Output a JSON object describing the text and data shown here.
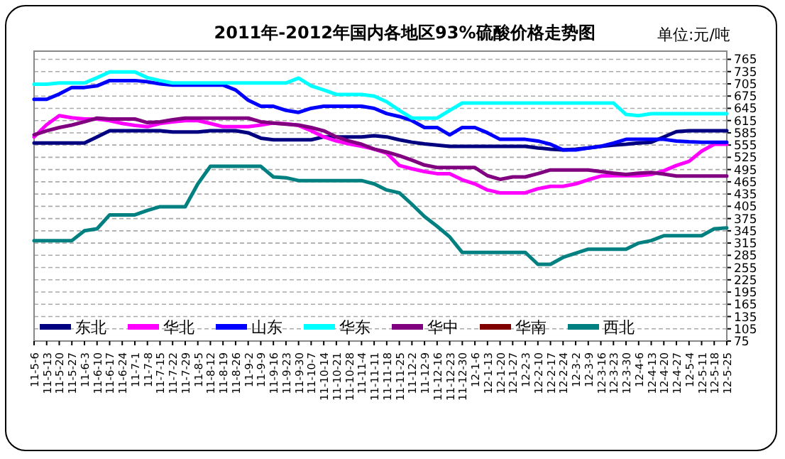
{
  "chart_data": {
    "type": "line",
    "title": "2011年-2012年国内各地区93%硫酸价格走势图",
    "annotations": [
      "单位:元/吨"
    ],
    "categories": [
      "11-5-6",
      "11-5-13",
      "11-5-20",
      "11-5-27",
      "11-6-3",
      "11-6-10",
      "11-6-17",
      "11-6-24",
      "11-7-1",
      "11-7-8",
      "11-7-15",
      "11-7-22",
      "11-7-29",
      "11-8-5",
      "11-8-12",
      "11-8-19",
      "11-8-26",
      "11-9-2",
      "11-9-9",
      "11-9-16",
      "11-9-23",
      "11-9-30",
      "11-10-7",
      "11-10-14",
      "11-10-21",
      "11-10-28",
      "11-11-4",
      "11-11-11",
      "11-11-18",
      "11-11-25",
      "11-12-2",
      "11-12-9",
      "11-12-16",
      "11-12-23",
      "11-12-30",
      "12-1-6",
      "12-1-13",
      "12-1-20",
      "12-1-27",
      "12-2-3",
      "12-2-10",
      "12-2-17",
      "12-2-24",
      "12-3-2",
      "12-3-9",
      "12-3-16",
      "12-3-23",
      "12-3-30",
      "12-4-6",
      "12-4-13",
      "12-4-20",
      "12-4-27",
      "12-5-4",
      "12-5-11",
      "12-5-18",
      "12-5-25"
    ],
    "series": [
      {
        "name": "东北",
        "color": "#000080",
        "values": [
          560,
          560,
          560,
          560,
          560,
          575,
          590,
          590,
          590,
          590,
          590,
          587,
          587,
          587,
          590,
          590,
          590,
          585,
          572,
          568,
          568,
          568,
          568,
          575,
          575,
          575,
          575,
          578,
          575,
          568,
          562,
          558,
          555,
          552,
          552,
          552,
          552,
          552,
          552,
          552,
          548,
          545,
          543,
          545,
          548,
          552,
          555,
          557,
          560,
          562,
          575,
          588,
          590,
          590,
          590,
          590
        ]
      },
      {
        "name": "华北",
        "color": "#ff00ff",
        "values": [
          575,
          605,
          627,
          622,
          619,
          619,
          615,
          608,
          603,
          600,
          608,
          612,
          615,
          615,
          608,
          600,
          600,
          600,
          604,
          609,
          607,
          603,
          590,
          575,
          565,
          558,
          552,
          545,
          535,
          505,
          497,
          490,
          485,
          485,
          470,
          460,
          445,
          438,
          438,
          438,
          448,
          454,
          454,
          460,
          470,
          479,
          480,
          480,
          480,
          483,
          492,
          505,
          515,
          540,
          557,
          557
        ]
      },
      {
        "name": "山东",
        "color": "#0000ff",
        "values": [
          667,
          667,
          680,
          696,
          696,
          700,
          713,
          713,
          713,
          710,
          705,
          702,
          702,
          702,
          702,
          702,
          690,
          665,
          650,
          650,
          640,
          635,
          645,
          650,
          650,
          650,
          650,
          645,
          632,
          625,
          615,
          598,
          598,
          580,
          598,
          598,
          585,
          569,
          569,
          569,
          565,
          557,
          543,
          543,
          548,
          552,
          560,
          569,
          569,
          569,
          569,
          565,
          563,
          562,
          562,
          562
        ]
      },
      {
        "name": "华东",
        "color": "#00ffff",
        "values": [
          704,
          704,
          707,
          707,
          707,
          720,
          734,
          734,
          734,
          720,
          713,
          707,
          707,
          707,
          707,
          707,
          707,
          707,
          707,
          707,
          707,
          719,
          700,
          690,
          679,
          679,
          679,
          675,
          661,
          640,
          621,
          621,
          621,
          640,
          658,
          658,
          658,
          658,
          658,
          658,
          658,
          658,
          658,
          658,
          658,
          658,
          658,
          630,
          627,
          632,
          632,
          632,
          632,
          632,
          632,
          632
        ]
      },
      {
        "name": "华中",
        "color": "#800080",
        "values": [
          580,
          590,
          598,
          604,
          612,
          621,
          619,
          619,
          619,
          610,
          612,
          617,
          621,
          621,
          621,
          621,
          621,
          621,
          612,
          609,
          606,
          604,
          598,
          590,
          575,
          565,
          557,
          545,
          538,
          529,
          518,
          506,
          500,
          500,
          500,
          500,
          480,
          471,
          477,
          477,
          485,
          494,
          494,
          494,
          494,
          490,
          486,
          483,
          486,
          488,
          484,
          479,
          479,
          479,
          479,
          479
        ]
      },
      {
        "name": "华南",
        "color": "#800000",
        "values": [
          null,
          null,
          null,
          null,
          null,
          null,
          null,
          null,
          null,
          null,
          null,
          null,
          null,
          null,
          null,
          null,
          null,
          null,
          null,
          null,
          null,
          null,
          null,
          null,
          null,
          null,
          null,
          null,
          null,
          null,
          null,
          null,
          null,
          null,
          null,
          null,
          null,
          null,
          null,
          null,
          null,
          null,
          null,
          null,
          null,
          null,
          null,
          null,
          null,
          null,
          null,
          null,
          null,
          null,
          null,
          null
        ]
      },
      {
        "name": "西北",
        "color": "#008080",
        "values": [
          321,
          321,
          321,
          321,
          345,
          350,
          384,
          384,
          384,
          395,
          404,
          404,
          404,
          460,
          503,
          503,
          503,
          503,
          503,
          477,
          475,
          468,
          468,
          468,
          468,
          468,
          468,
          460,
          445,
          438,
          410,
          380,
          356,
          330,
          292,
          292,
          292,
          292,
          292,
          292,
          263,
          263,
          280,
          290,
          300,
          300,
          300,
          300,
          315,
          321,
          333,
          333,
          333,
          333,
          350,
          352
        ]
      }
    ],
    "ylim": [
      75,
      785
    ],
    "yticks": [
      75,
      105,
      135,
      165,
      195,
      225,
      255,
      285,
      315,
      345,
      375,
      405,
      435,
      465,
      495,
      525,
      555,
      585,
      615,
      645,
      675,
      705,
      735,
      765
    ],
    "grid": "y",
    "legend": "bottom left"
  }
}
